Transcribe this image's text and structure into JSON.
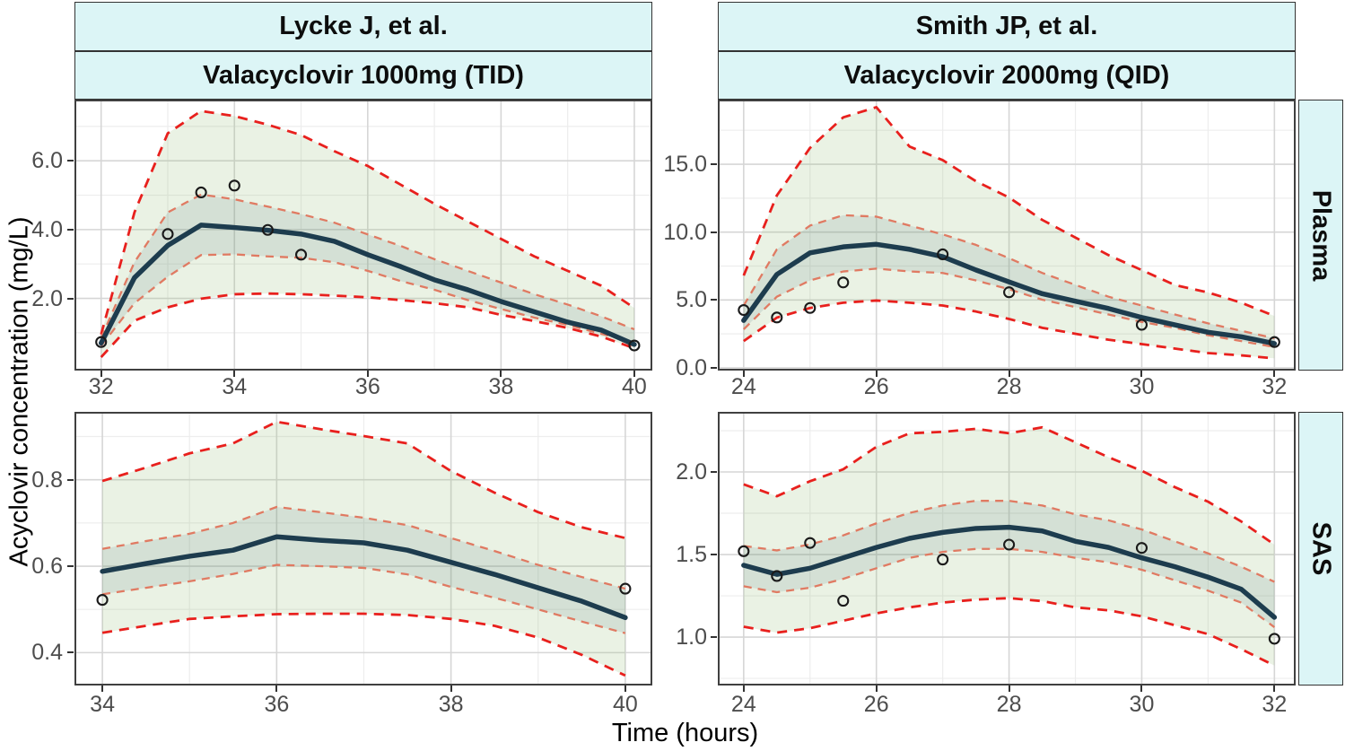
{
  "figure": {
    "x_axis_title": "Time (hours)",
    "y_axis_title": "Acyclovir concentration (mg/L)",
    "col_strips": [
      {
        "study": "Lycke J, et al.",
        "dose": "Valacyclovir 1000mg (TID)"
      },
      {
        "study": "Smith JP, et al.",
        "dose": "Valacyclovir 2000mg (QID)"
      }
    ],
    "row_strips": [
      "Plasma",
      "SAS"
    ],
    "colors": {
      "strip_fill": "#dcf5f6",
      "outer_dashed": "#e8201d",
      "inner_dashed": "#e07a62",
      "median_line": "#1d3c4e",
      "outer_band": "rgba(150,190,120,0.20)",
      "inner_band": "rgba(55,100,105,0.12)",
      "grid_major": "#d6d6d6",
      "grid_minor": "#ededed",
      "panel_border": "#404040",
      "tick_label": "#4d4d4d",
      "point_stroke": "#1a1a1a"
    }
  },
  "chart_data": [
    {
      "type": "line",
      "facet_col": "Lycke J, et al. / Valacyclovir 1000mg (TID)",
      "facet_row": "Plasma",
      "x": [
        32,
        32.5,
        33,
        33.5,
        34,
        34.5,
        35,
        35.5,
        36,
        36.5,
        37,
        37.5,
        38,
        38.5,
        39,
        39.5,
        40
      ],
      "series": [
        {
          "name": "outer_upper_interval",
          "style": "red-dashed",
          "values": [
            0.95,
            4.5,
            6.8,
            7.45,
            7.3,
            7.05,
            6.75,
            6.28,
            5.85,
            5.3,
            4.75,
            4.24,
            3.73,
            3.22,
            2.8,
            2.37,
            1.72
          ]
        },
        {
          "name": "inner_upper_interval",
          "style": "salmon-dashed",
          "values": [
            0.85,
            3.05,
            4.5,
            5.02,
            4.88,
            4.67,
            4.45,
            4.2,
            3.86,
            3.52,
            3.14,
            2.8,
            2.46,
            2.12,
            1.82,
            1.48,
            1.1
          ]
        },
        {
          "name": "median_prediction",
          "style": "solid-navy",
          "values": [
            0.7,
            2.6,
            3.54,
            4.13,
            4.06,
            3.98,
            3.87,
            3.66,
            3.27,
            2.92,
            2.54,
            2.25,
            1.91,
            1.61,
            1.31,
            1.08,
            0.66
          ]
        },
        {
          "name": "inner_lower_interval",
          "style": "salmon-dashed",
          "values": [
            0.62,
            1.86,
            2.63,
            3.26,
            3.28,
            3.22,
            3.18,
            3.05,
            2.8,
            2.5,
            2.25,
            1.95,
            1.69,
            1.44,
            1.23,
            0.97,
            0.72
          ]
        },
        {
          "name": "outer_lower_interval",
          "style": "red-dashed",
          "values": [
            0.29,
            1.35,
            1.74,
            1.99,
            2.12,
            2.14,
            2.12,
            2.08,
            2.03,
            1.95,
            1.86,
            1.74,
            1.52,
            1.34,
            1.14,
            0.89,
            0.55
          ]
        }
      ],
      "observations": [
        [
          32,
          0.73
        ],
        [
          33,
          3.87
        ],
        [
          33.5,
          5.08
        ],
        [
          34,
          5.28
        ],
        [
          34.5,
          3.99
        ],
        [
          35,
          3.27
        ],
        [
          40,
          0.63
        ]
      ],
      "xlim": [
        31.6,
        40.27
      ],
      "ylim": [
        -0.1,
        7.78
      ],
      "x_ticks": [
        32,
        34,
        36,
        38,
        40
      ],
      "x_tick_labels": [
        "32",
        "34",
        "36",
        "38",
        "40"
      ],
      "y_ticks": [
        2,
        4,
        6
      ],
      "y_tick_labels": [
        "2.0",
        "4.0",
        "6.0"
      ],
      "x_minor": [
        33,
        35,
        37,
        39
      ],
      "y_minor": [
        1,
        3,
        5,
        7
      ]
    },
    {
      "type": "line",
      "facet_col": "Smith JP, et al. / Valacyclovir 2000mg (QID)",
      "facet_row": "Plasma",
      "x": [
        24,
        24.5,
        25,
        25.5,
        26,
        26.5,
        27,
        27.5,
        28,
        28.5,
        29,
        29.5,
        30,
        30.5,
        31,
        31.5,
        32
      ],
      "series": [
        {
          "name": "outer_upper_interval",
          "style": "red-dashed",
          "values": [
            6.8,
            12.7,
            16.2,
            18.45,
            19.2,
            16.3,
            15.3,
            13.75,
            12.55,
            10.9,
            9.6,
            8.3,
            7.2,
            6.1,
            5.55,
            4.8,
            3.82
          ]
        },
        {
          "name": "inner_upper_interval",
          "style": "salmon-dashed",
          "values": [
            4.59,
            8.73,
            10.48,
            11.24,
            11.14,
            10.48,
            9.83,
            9.06,
            8.08,
            6.99,
            6.11,
            5.24,
            4.59,
            3.93,
            3.28,
            2.73,
            2.18
          ]
        },
        {
          "name": "median_prediction",
          "style": "solid-navy",
          "values": [
            3.49,
            6.88,
            8.47,
            8.91,
            9.1,
            8.73,
            8.19,
            7.21,
            6.33,
            5.46,
            4.91,
            4.37,
            3.71,
            3.17,
            2.62,
            2.29,
            1.79
          ]
        },
        {
          "name": "inner_lower_interval",
          "style": "salmon-dashed",
          "values": [
            2.84,
            5.24,
            6.44,
            7.1,
            7.31,
            7.1,
            6.99,
            6.44,
            5.79,
            5.02,
            4.48,
            3.93,
            3.38,
            2.95,
            2.4,
            1.97,
            1.53
          ]
        },
        {
          "name": "outer_lower_interval",
          "style": "red-dashed",
          "values": [
            1.97,
            3.7,
            4.41,
            4.8,
            4.96,
            4.8,
            4.59,
            4.15,
            3.6,
            2.95,
            2.51,
            2.07,
            1.75,
            1.42,
            1.09,
            0.92,
            0.7
          ]
        }
      ],
      "observations": [
        [
          24,
          4.26
        ],
        [
          24.5,
          3.71
        ],
        [
          25,
          4.41
        ],
        [
          25.5,
          6.29
        ],
        [
          27,
          8.36
        ],
        [
          28,
          5.57
        ],
        [
          30,
          3.17
        ],
        [
          32,
          1.9
        ]
      ],
      "xlim": [
        23.61,
        32.32
      ],
      "ylim": [
        -0.2,
        19.76
      ],
      "x_ticks": [
        24,
        26,
        28,
        30,
        32
      ],
      "x_tick_labels": [
        "24",
        "26",
        "28",
        "30",
        "32"
      ],
      "y_ticks": [
        0,
        5,
        10,
        15
      ],
      "y_tick_labels": [
        "0.0",
        "5.0",
        "10.0",
        "15.0"
      ],
      "x_minor": [
        25,
        27,
        29,
        31
      ],
      "y_minor": [
        2.5,
        7.5,
        12.5,
        17.5
      ]
    },
    {
      "type": "line",
      "facet_col": "Lycke J, et al. / Valacyclovir 1000mg (TID)",
      "facet_row": "SAS",
      "x": [
        34,
        34.5,
        35,
        35.5,
        36,
        36.5,
        37,
        37.5,
        38,
        38.5,
        39,
        39.5,
        40
      ],
      "series": [
        {
          "name": "outer_upper_interval",
          "style": "red-dashed",
          "values": [
            0.797,
            0.828,
            0.861,
            0.884,
            0.934,
            0.917,
            0.901,
            0.884,
            0.82,
            0.77,
            0.725,
            0.69,
            0.665
          ]
        },
        {
          "name": "inner_upper_interval",
          "style": "salmon-dashed",
          "values": [
            0.64,
            0.658,
            0.675,
            0.7,
            0.737,
            0.725,
            0.712,
            0.695,
            0.665,
            0.635,
            0.603,
            0.575,
            0.548
          ]
        },
        {
          "name": "median_prediction",
          "style": "solid-navy",
          "values": [
            0.588,
            0.606,
            0.623,
            0.637,
            0.668,
            0.66,
            0.654,
            0.637,
            0.609,
            0.581,
            0.55,
            0.519,
            0.481
          ]
        },
        {
          "name": "inner_lower_interval",
          "style": "salmon-dashed",
          "values": [
            0.535,
            0.55,
            0.565,
            0.582,
            0.603,
            0.6,
            0.596,
            0.581,
            0.552,
            0.527,
            0.5,
            0.472,
            0.445
          ]
        },
        {
          "name": "outer_lower_interval",
          "style": "red-dashed",
          "values": [
            0.446,
            0.462,
            0.478,
            0.484,
            0.489,
            0.49,
            0.49,
            0.487,
            0.478,
            0.462,
            0.435,
            0.395,
            0.347
          ]
        }
      ],
      "observations": [
        [
          34,
          0.522
        ],
        [
          40,
          0.548
        ]
      ],
      "xlim": [
        33.68,
        40.31
      ],
      "ylim": [
        0.324,
        0.957
      ],
      "x_ticks": [
        34,
        36,
        38,
        40
      ],
      "x_tick_labels": [
        "34",
        "36",
        "38",
        "40"
      ],
      "y_ticks": [
        0.4,
        0.6,
        0.8
      ],
      "y_tick_labels": [
        "0.4",
        "0.6",
        "0.8"
      ],
      "x_minor": [
        35,
        37,
        39
      ],
      "y_minor": [
        0.5,
        0.7,
        0.9
      ]
    },
    {
      "type": "line",
      "facet_col": "Smith JP, et al. / Valacyclovir 2000mg (QID)",
      "facet_row": "SAS",
      "x": [
        24,
        24.5,
        25,
        25.5,
        26,
        26.5,
        27,
        27.5,
        28,
        28.5,
        29,
        29.5,
        30,
        30.5,
        31,
        31.5,
        32
      ],
      "series": [
        {
          "name": "outer_upper_interval",
          "style": "red-dashed",
          "values": [
            1.925,
            1.853,
            1.944,
            2.016,
            2.152,
            2.234,
            2.243,
            2.261,
            2.234,
            2.27,
            2.18,
            2.089,
            2.007,
            1.908,
            1.82,
            1.7,
            1.56
          ]
        },
        {
          "name": "inner_upper_interval",
          "style": "salmon-dashed",
          "values": [
            1.552,
            1.525,
            1.561,
            1.616,
            1.689,
            1.752,
            1.797,
            1.825,
            1.825,
            1.797,
            1.743,
            1.707,
            1.652,
            1.58,
            1.507,
            1.426,
            1.335
          ]
        },
        {
          "name": "median_prediction",
          "style": "solid-navy",
          "values": [
            1.435,
            1.38,
            1.417,
            1.48,
            1.543,
            1.598,
            1.634,
            1.658,
            1.665,
            1.643,
            1.58,
            1.543,
            1.48,
            1.426,
            1.363,
            1.29,
            1.12
          ]
        },
        {
          "name": "inner_lower_interval",
          "style": "salmon-dashed",
          "values": [
            1.308,
            1.272,
            1.299,
            1.353,
            1.417,
            1.48,
            1.516,
            1.534,
            1.534,
            1.516,
            1.48,
            1.453,
            1.408,
            1.344,
            1.281,
            1.209,
            1.06
          ]
        },
        {
          "name": "outer_lower_interval",
          "style": "red-dashed",
          "values": [
            1.063,
            1.027,
            1.054,
            1.099,
            1.144,
            1.18,
            1.209,
            1.227,
            1.236,
            1.218,
            1.18,
            1.162,
            1.126,
            1.072,
            1.018,
            0.927,
            0.828
          ]
        }
      ],
      "observations": [
        [
          24,
          1.52
        ],
        [
          24.5,
          1.37
        ],
        [
          25,
          1.57
        ],
        [
          25.5,
          1.22
        ],
        [
          27,
          1.47
        ],
        [
          28,
          1.56
        ],
        [
          30,
          1.54
        ],
        [
          32,
          0.99
        ]
      ],
      "xlim": [
        23.61,
        32.32
      ],
      "ylim": [
        0.707,
        2.364
      ],
      "x_ticks": [
        24,
        26,
        28,
        30,
        32
      ],
      "x_tick_labels": [
        "24",
        "26",
        "28",
        "30",
        "32"
      ],
      "y_ticks": [
        1.0,
        1.5,
        2.0
      ],
      "y_tick_labels": [
        "1.0",
        "1.5",
        "2.0"
      ],
      "x_minor": [
        25,
        27,
        29,
        31
      ],
      "y_minor": [
        0.75,
        1.25,
        1.75,
        2.25
      ]
    }
  ]
}
